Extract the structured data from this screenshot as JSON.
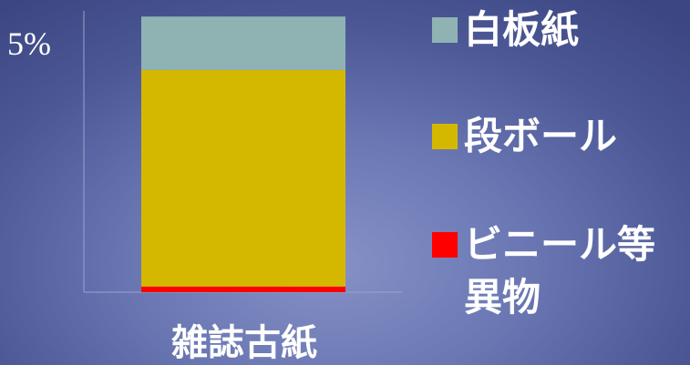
{
  "chart_data": {
    "type": "bar",
    "stacked": true,
    "categories": [
      "雑誌古紙"
    ],
    "series": [
      {
        "name": "ビニール等異物",
        "values": [
          0.1
        ],
        "color": "#ff0000"
      },
      {
        "name": "段ボール",
        "values": [
          3.85
        ],
        "color": "#d4b800"
      },
      {
        "name": "白板紙",
        "values": [
          0.95
        ],
        "color": "#8fb3b3"
      }
    ],
    "y_tick_labels": [
      "5%"
    ],
    "ylim": [
      0,
      5
    ],
    "unit": "%",
    "grid": false,
    "legend_position": "right"
  }
}
